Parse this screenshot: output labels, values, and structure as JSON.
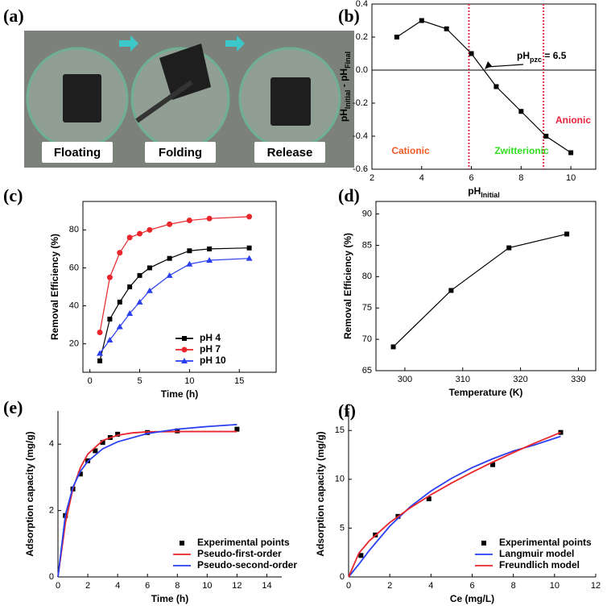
{
  "photo_panel": {
    "label": "(a)",
    "captions": [
      "Floating",
      "Folding",
      "Release"
    ]
  },
  "chart_data": [
    {
      "panel_label": "(b)",
      "type": "line",
      "frame": "box",
      "x": [
        3,
        4,
        5,
        6,
        7,
        8,
        9,
        10
      ],
      "series": [
        {
          "color": "#000000",
          "marker": "square",
          "values": [
            0.2,
            0.3,
            0.25,
            0.1,
            -0.1,
            -0.25,
            -0.4,
            -0.5
          ]
        }
      ],
      "xlim": [
        2,
        11
      ],
      "xticks": [
        2,
        4,
        6,
        8,
        10
      ],
      "ylim": [
        -0.6,
        0.4
      ],
      "yticks": [
        -0.6,
        -0.4,
        -0.2,
        {
          "value": 0,
          "label": "0.0"
        },
        0.2,
        0.4
      ],
      "x_label": [
        {
          "text": "pH"
        },
        {
          "text": "Initial",
          "baseline": "sub"
        }
      ],
      "y_label": [
        {
          "text": "pH"
        },
        {
          "text": "Initial",
          "baseline": "sub"
        },
        {
          "text": " - pH"
        },
        {
          "text": "Final",
          "baseline": "sub"
        }
      ],
      "hlines": [
        0
      ],
      "vlines": [
        {
          "x": 5.9,
          "color": "#e0304a"
        },
        {
          "x": 8.9,
          "color": "#e0304a"
        }
      ],
      "regions": [
        {
          "text": "Cationic",
          "color": "#f05a28"
        },
        {
          "text": "Zwitterionic",
          "color": "#33dd22"
        },
        {
          "text": "Anionic",
          "color": "#e8203c"
        }
      ],
      "annotation": [
        {
          "text": "pH"
        },
        {
          "text": "pzc",
          "baseline": "sub"
        },
        {
          "text": " = 6.5"
        }
      ]
    },
    {
      "panel_label": "(c)",
      "type": "line",
      "frame": "box",
      "legend": "lower-right",
      "x": [
        1,
        2,
        3,
        4,
        5,
        6,
        8,
        10,
        12,
        16
      ],
      "series": [
        {
          "name": "pH 4",
          "color": "#000000",
          "marker": "square",
          "values": [
            11,
            33,
            42,
            50,
            56,
            60,
            65,
            69,
            70,
            70.5
          ]
        },
        {
          "name": "pH 7",
          "color": "#e8262c",
          "marker": "circle",
          "values": [
            26,
            55,
            68,
            76,
            78,
            80,
            83,
            85,
            86,
            87
          ]
        },
        {
          "name": "pH 10",
          "color": "#2a3ff0",
          "marker": "triangle",
          "values": [
            15,
            22,
            29,
            36,
            42,
            48,
            56,
            62,
            64,
            65
          ]
        }
      ],
      "xlim": [
        -0.7,
        18.7
      ],
      "xticks": [
        0,
        5,
        10,
        15
      ],
      "ylim": [
        5,
        95
      ],
      "yticks": [
        20,
        40,
        60,
        80
      ],
      "x_label": [
        {
          "text": "Time (h)"
        }
      ],
      "y_label": [
        {
          "text": "Removal Efficiency (%)"
        }
      ]
    },
    {
      "panel_label": "(d)",
      "type": "line",
      "frame": "box",
      "x": [
        298,
        308,
        318,
        328
      ],
      "series": [
        {
          "color": "#000000",
          "marker": "square",
          "values": [
            68.8,
            77.8,
            84.6,
            86.8
          ]
        }
      ],
      "xlim": [
        295,
        333
      ],
      "xticks": [
        300,
        310,
        320,
        330
      ],
      "ylim": [
        65,
        92
      ],
      "yticks": [
        65,
        70,
        75,
        80,
        85,
        90
      ],
      "x_label": [
        {
          "text": "Temperature (K)"
        }
      ],
      "y_label": [
        {
          "text": "Removal Efficiency (%)"
        }
      ]
    },
    {
      "panel_label": "(e)",
      "type": "line",
      "frame": "axes",
      "legend": "lower-right",
      "series": [
        {
          "name": "Experimental points",
          "color": "#000000",
          "marker": "square",
          "line": false,
          "x": [
            0.5,
            1,
            1.5,
            2,
            2.5,
            3,
            3.5,
            4,
            6,
            8,
            12
          ],
          "values": [
            1.85,
            2.65,
            3.1,
            3.5,
            3.8,
            4.05,
            4.2,
            4.3,
            4.35,
            4.4,
            4.45
          ]
        },
        {
          "name": "Pseudo-first-order",
          "color": "#e8262c",
          "x": [
            0,
            0.5,
            1,
            1.5,
            2,
            3,
            4,
            5,
            6,
            8,
            10,
            12
          ],
          "values": [
            0,
            1.63,
            2.65,
            3.29,
            3.7,
            4.11,
            4.27,
            4.34,
            4.37,
            4.38,
            4.38,
            4.38
          ]
        },
        {
          "name": "Pseudo-second-order",
          "color": "#2a3ff0",
          "x": [
            0,
            0.5,
            1,
            1.5,
            2,
            3,
            4,
            6,
            8,
            10,
            12
          ],
          "values": [
            0,
            1.87,
            2.7,
            3.18,
            3.48,
            3.86,
            4.07,
            4.32,
            4.45,
            4.53,
            4.59
          ]
        }
      ],
      "xlim": [
        0,
        15
      ],
      "xticks": [
        0,
        2,
        4,
        6,
        8,
        10,
        12,
        14
      ],
      "ylim": [
        0,
        5
      ],
      "yticks": [
        0,
        2,
        4
      ],
      "x_label": [
        {
          "text": "Time (h)"
        }
      ],
      "y_label": [
        {
          "text": "Adsorption capacity (mg/g)"
        }
      ]
    },
    {
      "panel_label": "(f)",
      "type": "line",
      "frame": "axes",
      "legend": "lower-right",
      "series": [
        {
          "name": "Experimental points",
          "color": "#000000",
          "marker": "square",
          "line": false,
          "x": [
            0.6,
            1.3,
            2.4,
            3.9,
            7,
            10.3
          ],
          "values": [
            2.2,
            4.3,
            6.2,
            8,
            11.5,
            14.8
          ]
        },
        {
          "name": "Langmuir model",
          "color": "#2a3ff0",
          "x": [
            0,
            0.5,
            1,
            2,
            3,
            4,
            5,
            6,
            7,
            8,
            9,
            10.3
          ],
          "values": [
            0,
            1.3,
            2.7,
            5.2,
            7.2,
            8.8,
            10.1,
            11.2,
            12.1,
            12.9,
            13.5,
            14.4
          ]
        },
        {
          "name": "Freundlich model",
          "color": "#e8262c",
          "x": [
            0,
            0.5,
            1,
            2,
            3,
            4,
            5,
            6,
            7,
            8,
            9,
            10.3
          ],
          "values": [
            0,
            2.43,
            3.68,
            5.57,
            7.09,
            8.42,
            9.62,
            10.72,
            11.76,
            12.74,
            13.67,
            14.8
          ]
        }
      ],
      "xlim": [
        0,
        12
      ],
      "xticks": [
        0,
        2,
        4,
        6,
        8,
        10,
        12
      ],
      "ylim": [
        0,
        17
      ],
      "yticks": [
        0,
        5,
        10,
        15
      ],
      "x_label": [
        {
          "text": "Ce (mg/L)"
        }
      ],
      "y_label": [
        {
          "text": "Adsorption capacity (mg/g)"
        }
      ]
    }
  ]
}
